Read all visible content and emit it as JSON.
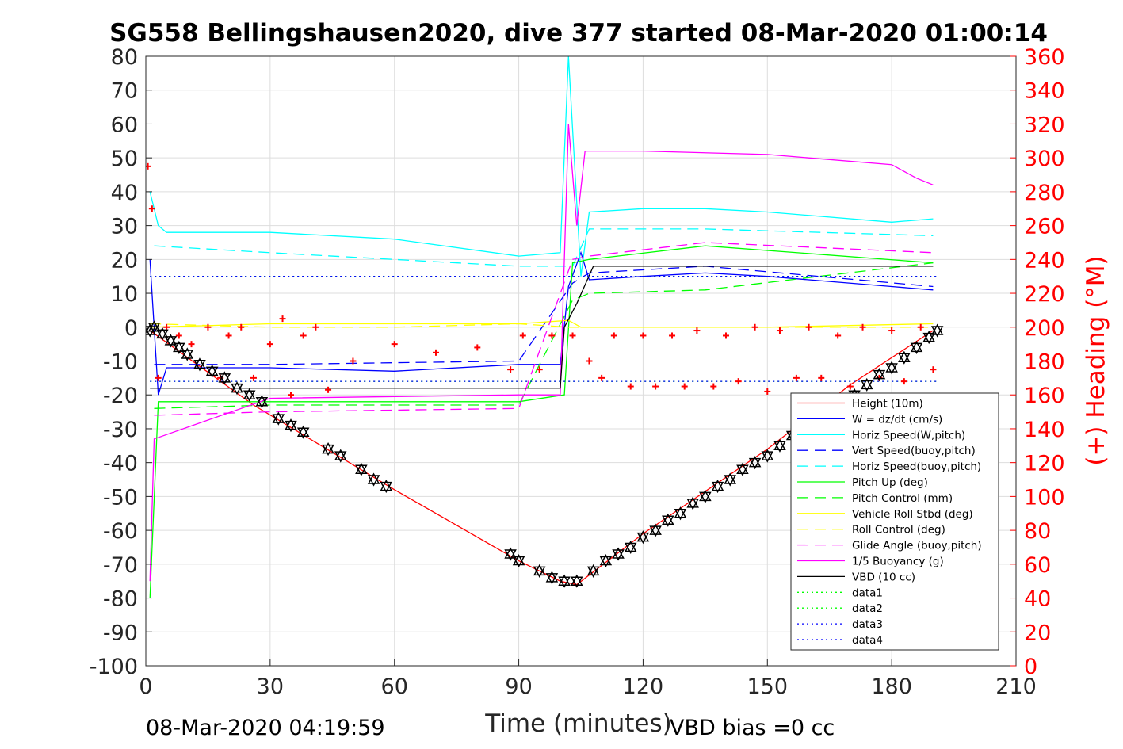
{
  "chart_data": {
    "type": "line",
    "title": "SG558 Bellingshausen2020, dive 377 started 08-Mar-2020 01:00:14",
    "xlabel": "Time (minutes)",
    "ylabel_right": "(+) Heading (°M)",
    "xlim": [
      0,
      210
    ],
    "ylim": [
      -100,
      80
    ],
    "ylim_right": [
      0,
      360
    ],
    "xticks": [
      "0",
      "30",
      "60",
      "90",
      "120",
      "150",
      "180",
      "210"
    ],
    "yticks": [
      "80",
      "70",
      "60",
      "50",
      "40",
      "30",
      "20",
      "10",
      "0",
      "-10",
      "-20",
      "-30",
      "-40",
      "-50",
      "-60",
      "-70",
      "-80",
      "-90",
      "-100"
    ],
    "yticks_right": [
      "360",
      "340",
      "320",
      "300",
      "280",
      "260",
      "240",
      "220",
      "200",
      "180",
      "160",
      "140",
      "120",
      "100",
      "80",
      "60",
      "40",
      "20",
      "0"
    ],
    "grid": true,
    "legend_position": "bottom-right",
    "footer_left": "08-Mar-2020 04:19:59",
    "footer_right": "VBD bias =0 cc",
    "series": [
      {
        "name": "Height (10m)",
        "color": "#ff0000",
        "style": "solid",
        "x": [
          1,
          26,
          60,
          90,
          100,
          104,
          120,
          150,
          170,
          190
        ],
        "y": [
          -1,
          -23,
          -48,
          -69,
          -75,
          -76,
          -61,
          -36,
          -17,
          -1
        ]
      },
      {
        "name": "W = dz/dt (cm/s)",
        "color": "#0000ff",
        "style": "solid",
        "x": [
          1,
          3,
          5,
          30,
          60,
          90,
          100,
          102,
          105,
          107,
          120,
          135,
          150,
          180,
          190
        ],
        "y": [
          20,
          -20,
          -12,
          -12,
          -13,
          -11,
          -11,
          12,
          22,
          14,
          15,
          16,
          15,
          12,
          11
        ]
      },
      {
        "name": "Horiz Speed(W,pitch)",
        "color": "#00ffff",
        "style": "solid",
        "x": [
          1,
          3,
          5,
          30,
          60,
          90,
          100,
          102,
          105,
          107,
          120,
          135,
          150,
          180,
          190
        ],
        "y": [
          40,
          30,
          28,
          28,
          26,
          21,
          22,
          80,
          15,
          34,
          35,
          35,
          34,
          31,
          32
        ]
      },
      {
        "name": "Vert Speed(buoy,pitch)",
        "color": "#0000ff",
        "style": "dashed",
        "x": [
          2,
          30,
          90,
          103,
          107,
          135,
          190
        ],
        "y": [
          -11,
          -11,
          -10,
          13,
          16,
          18,
          12
        ]
      },
      {
        "name": "Horiz Speed(buoy,pitch)",
        "color": "#00ffff",
        "style": "dashed",
        "x": [
          2,
          30,
          90,
          103,
          107,
          135,
          190
        ],
        "y": [
          24,
          22,
          18,
          18,
          29,
          29,
          27
        ]
      },
      {
        "name": "Pitch Up (deg)",
        "color": "#00ff00",
        "style": "solid",
        "x": [
          1,
          3,
          30,
          90,
          101,
          103,
          107,
          135,
          190
        ],
        "y": [
          -80,
          -22,
          -22,
          -22,
          -20,
          19,
          20,
          24,
          19
        ]
      },
      {
        "name": "Pitch Control (mm)",
        "color": "#00ff00",
        "style": "dashed",
        "x": [
          2,
          30,
          90,
          103,
          107,
          135,
          190
        ],
        "y": [
          -24,
          -23,
          -23,
          8,
          10,
          11,
          19
        ]
      },
      {
        "name": "Vehicle Roll Stbd (deg)",
        "color": "#ffff00",
        "style": "solid",
        "x": [
          1,
          30,
          60,
          90,
          102,
          105,
          120,
          150,
          190
        ],
        "y": [
          0,
          1,
          1,
          1,
          2,
          0,
          0,
          0,
          1
        ]
      },
      {
        "name": "Roll Control (deg)",
        "color": "#ffff00",
        "style": "dashed",
        "x": [
          1,
          30,
          60,
          90,
          102,
          105,
          120,
          150,
          190
        ],
        "y": [
          1,
          0,
          0,
          1,
          0,
          0,
          0,
          0,
          0
        ]
      },
      {
        "name": "Glide Angle (buoy,pitch)",
        "color": "#ff00ff",
        "style": "dashed",
        "x": [
          2,
          30,
          90,
          103,
          107,
          135,
          190
        ],
        "y": [
          -26,
          -25,
          -24,
          20,
          21,
          25,
          22
        ]
      },
      {
        "name": "1/5 Buoyancy (g)",
        "color": "#ff00ff",
        "style": "solid",
        "x": [
          1,
          2,
          30,
          90,
          100,
          102,
          104,
          106,
          120,
          150,
          180,
          186,
          190
        ],
        "y": [
          -75,
          -33,
          -21,
          -20,
          -20,
          60,
          30,
          52,
          52,
          51,
          48,
          44,
          42
        ]
      },
      {
        "name": "VBD (10 cc)",
        "color": "#000000",
        "style": "solid",
        "x": [
          1,
          3,
          100,
          101,
          104,
          108,
          190
        ],
        "y": [
          -18,
          -18,
          -18,
          0,
          7,
          18,
          18
        ]
      },
      {
        "name": "data1",
        "color": "#00ff00",
        "style": "dotted",
        "x": [
          1,
          191
        ],
        "y": [
          -16,
          -16
        ]
      },
      {
        "name": "data2",
        "color": "#00ff00",
        "style": "dotted",
        "x": [
          1,
          191
        ],
        "y": [
          15,
          15
        ]
      },
      {
        "name": "data3",
        "color": "#0000ff",
        "style": "dotted",
        "x": [
          1,
          191
        ],
        "y": [
          -16,
          -16
        ]
      },
      {
        "name": "data4",
        "color": "#0000ff",
        "style": "dotted",
        "x": [
          1,
          191
        ],
        "y": [
          15,
          15
        ]
      }
    ],
    "heading_series": {
      "color": "#ff0000",
      "marker": "+",
      "axis": "right",
      "x": [
        0.5,
        1.5,
        3,
        5,
        8,
        11,
        15,
        18,
        20,
        23,
        26,
        30,
        33,
        35,
        38,
        41,
        44,
        50,
        60,
        70,
        80,
        88,
        91,
        95,
        98,
        103,
        107,
        110,
        113,
        117,
        120,
        123,
        127,
        130,
        133,
        137,
        140,
        143,
        147,
        150,
        153,
        157,
        160,
        163,
        167,
        170,
        173,
        177,
        180,
        183,
        187,
        190
      ],
      "y": [
        295,
        270,
        170,
        200,
        195,
        190,
        200,
        170,
        195,
        200,
        170,
        190,
        205,
        160,
        195,
        200,
        163,
        180,
        190,
        185,
        188,
        175,
        195,
        175,
        195,
        195,
        180,
        170,
        195,
        165,
        195,
        165,
        195,
        165,
        198,
        165,
        195,
        168,
        200,
        162,
        198,
        170,
        200,
        170,
        195,
        165,
        200,
        170,
        198,
        168,
        200,
        175
      ]
    },
    "depth_markers": {
      "color": "#000000",
      "marker": "star-triangle",
      "x": [
        1,
        2,
        4,
        6,
        8,
        10,
        13,
        16,
        19,
        22,
        25,
        28,
        32,
        35,
        38,
        44,
        47,
        52,
        55,
        58,
        88,
        90,
        95,
        98,
        101,
        104,
        108,
        111,
        114,
        117,
        120,
        123,
        126,
        129,
        132,
        135,
        138,
        141,
        144,
        147,
        150,
        153,
        156,
        159,
        162,
        165,
        168,
        171,
        174,
        177,
        180,
        183,
        186,
        189,
        191
      ],
      "y": [
        -1,
        0,
        -2,
        -4,
        -6,
        -8,
        -11,
        -13,
        -15,
        -18,
        -20,
        -22,
        -27,
        -29,
        -31,
        -36,
        -38,
        -42,
        -45,
        -47,
        -67,
        -69,
        -72,
        -74,
        -75,
        -75,
        -72,
        -69,
        -67,
        -65,
        -62,
        -60,
        -57,
        -55,
        -52,
        -50,
        -47,
        -45,
        -42,
        -40,
        -38,
        -35,
        -32,
        -30,
        -28,
        -25,
        -22,
        -20,
        -17,
        -14,
        -12,
        -9,
        -6,
        -3,
        -1
      ]
    }
  }
}
